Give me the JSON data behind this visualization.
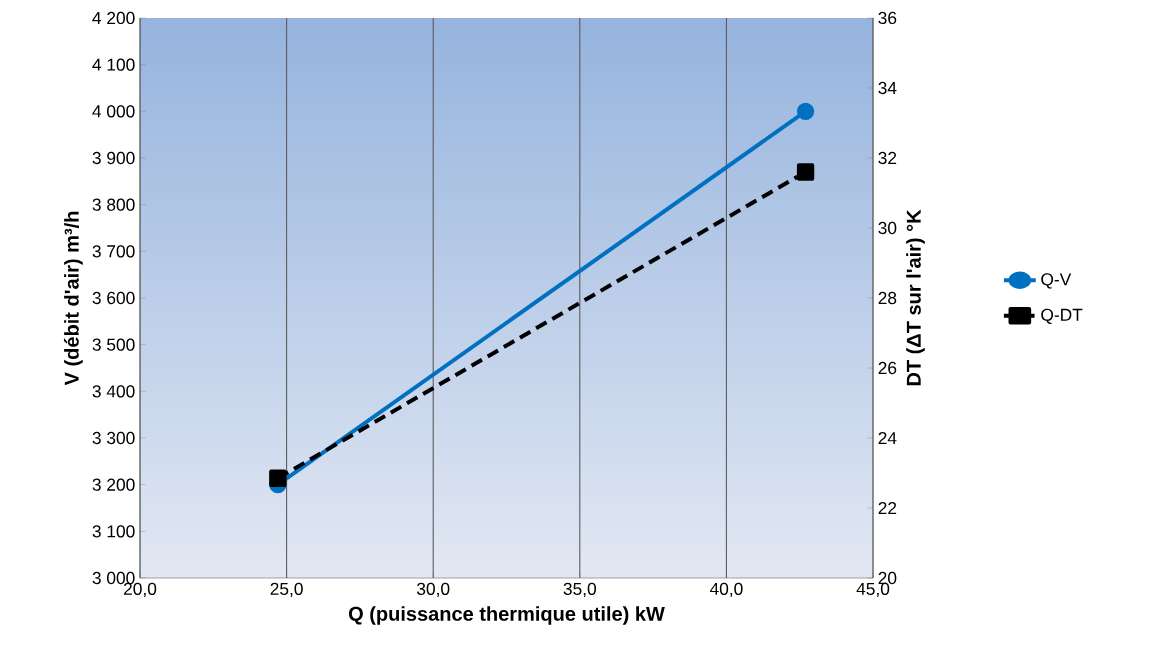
{
  "chart_data": {
    "type": "line",
    "xlabel": "Q (puissance thermique utile) kW",
    "ylabel": "V (débit d'air) m³/h",
    "y2label": "DT (ΔT sur l'air) °K",
    "x": [
      24.7,
      42.7
    ],
    "series": [
      {
        "name": "Q-V",
        "color": "#0070c0",
        "values": [
          3200,
          4000
        ],
        "marker": "circle",
        "line_style": "solid"
      },
      {
        "name": "Q-DT",
        "color": "#000000",
        "values": [
          22.85,
          31.6
        ],
        "marker": "square",
        "line_style": "dashed",
        "axis": "y2"
      }
    ],
    "xlim": [
      20,
      45
    ],
    "xticks": [
      {
        "value": 20,
        "label": "20,0"
      },
      {
        "value": 25,
        "label": "25,0"
      },
      {
        "value": 30,
        "label": "30,0"
      },
      {
        "value": 35,
        "label": "35,0"
      },
      {
        "value": 40,
        "label": "40,0"
      },
      {
        "value": 45,
        "label": "45,0"
      }
    ],
    "ylim": [
      3000,
      4200
    ],
    "yticks": [
      {
        "value": 3000,
        "label": "3 000"
      },
      {
        "value": 3100,
        "label": "3 100"
      },
      {
        "value": 3200,
        "label": "3 200"
      },
      {
        "value": 3300,
        "label": "3 300"
      },
      {
        "value": 3400,
        "label": "3 400"
      },
      {
        "value": 3500,
        "label": "3 500"
      },
      {
        "value": 3600,
        "label": "3 600"
      },
      {
        "value": 3700,
        "label": "3 700"
      },
      {
        "value": 3800,
        "label": "3 800"
      },
      {
        "value": 3900,
        "label": "3 900"
      },
      {
        "value": 4000,
        "label": "4 000"
      },
      {
        "value": 4100,
        "label": "4 100"
      },
      {
        "value": 4200,
        "label": "4 200"
      }
    ],
    "y2lim": [
      20,
      36
    ],
    "y2ticks": [
      20,
      22,
      24,
      26,
      28,
      30,
      32,
      34,
      36
    ],
    "grid": "x",
    "legend": "right"
  }
}
